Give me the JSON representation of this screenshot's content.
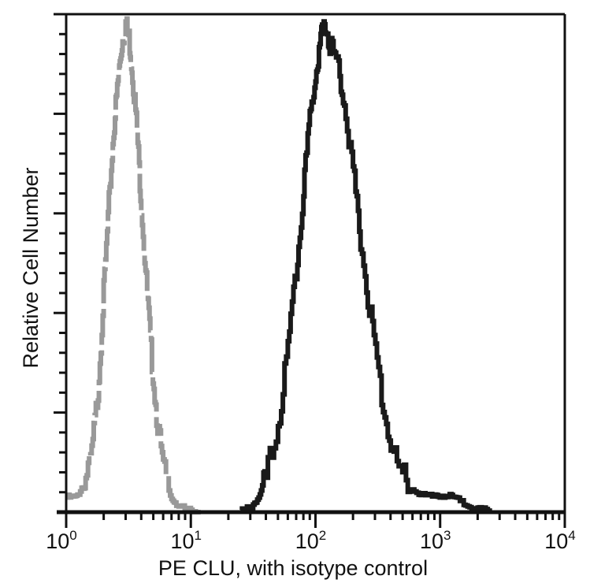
{
  "chart_data": {
    "type": "line",
    "subtype": "flow-cytometry-histogram",
    "title": "",
    "xlabel": "PE  CLU,  with isotype control",
    "ylabel": "Relative Cell Number",
    "xscale": "log",
    "xlim": [
      1,
      10000
    ],
    "x_ticks": [
      {
        "base": "10",
        "exp": "0",
        "value": 1
      },
      {
        "base": "10",
        "exp": "1",
        "value": 10
      },
      {
        "base": "10",
        "exp": "2",
        "value": 100
      },
      {
        "base": "10",
        "exp": "3",
        "value": 1000
      },
      {
        "base": "10",
        "exp": "4",
        "value": 10000
      }
    ],
    "ylim": [
      0,
      100
    ],
    "y_tick_labels": [],
    "grid": false,
    "legend": null,
    "series": [
      {
        "name": "Isotype control",
        "style": "dashed",
        "color": "#999999",
        "x": [
          1.0,
          1.2,
          1.4,
          1.6,
          1.8,
          2.0,
          2.2,
          2.4,
          2.6,
          2.8,
          3.0,
          3.2,
          3.4,
          3.7,
          4.0,
          4.4,
          4.8,
          5.3,
          6.0,
          7.0,
          8.0,
          10.0,
          12.0
        ],
        "y": [
          3,
          3,
          6,
          12,
          25,
          45,
          63,
          78,
          88,
          96,
          100,
          97,
          90,
          78,
          63,
          47,
          33,
          20,
          9,
          3,
          1,
          0.3,
          0
        ]
      },
      {
        "name": "PE CLU",
        "style": "solid",
        "color": "#1a1a1a",
        "x": [
          25,
          30,
          35,
          40,
          50,
          60,
          70,
          80,
          90,
          100,
          110,
          120,
          130,
          150,
          170,
          200,
          230,
          270,
          320,
          380,
          450,
          550,
          700,
          900,
          1100,
          1300,
          1600,
          2000,
          2500
        ],
        "y": [
          0,
          1,
          3,
          7,
          18,
          33,
          50,
          66,
          80,
          90,
          97,
          100,
          96,
          92,
          84,
          70,
          56,
          42,
          28,
          17,
          10,
          6,
          3.5,
          3,
          3.5,
          3,
          1.5,
          0.8,
          0
        ]
      }
    ]
  }
}
